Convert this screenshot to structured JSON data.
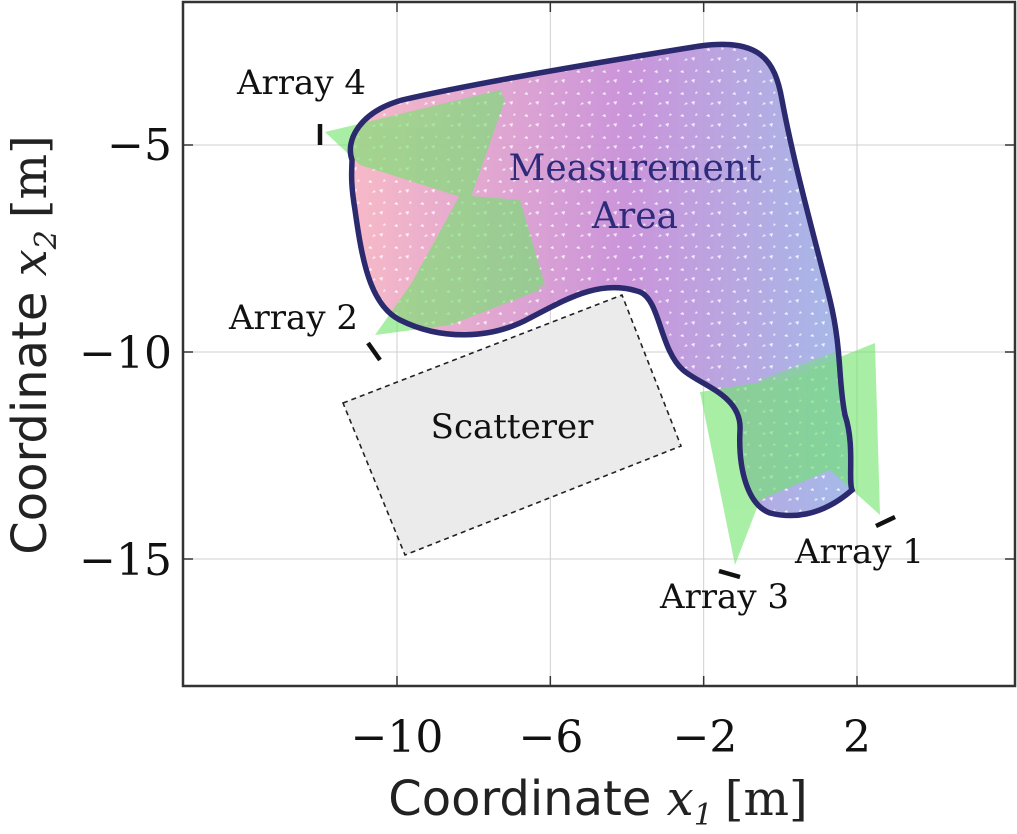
{
  "figure": {
    "x_axis": {
      "label_prefix": "Coordinate ",
      "label_symbol": "x",
      "label_subscript": "1",
      "label_unit": "[m]",
      "ticks": [
        -10,
        -6,
        -2,
        2
      ],
      "tick_labels": [
        "−10",
        "−6",
        "−2",
        "2"
      ],
      "range": [
        -15.5,
        6
      ]
    },
    "y_axis": {
      "label_prefix": "Coordinate ",
      "label_symbol": "x",
      "label_subscript": "2",
      "label_unit": "[m]",
      "ticks": [
        -5,
        -10,
        -15
      ],
      "tick_labels": [
        "−5",
        "−10",
        "−15"
      ],
      "range": [
        -18,
        -1.7
      ]
    },
    "measurement_area": {
      "label_line1": "Measurement",
      "label_line2": "Area",
      "outline_color": "#2b2a6e",
      "gradient_start": "#f7b6c4",
      "gradient_mid": "#c88fd8",
      "gradient_end": "#9fb7e8"
    },
    "scatterer": {
      "label": "Scatterer",
      "fill": "#ebebeb",
      "corners": [
        [
          -10.0,
          -11.3
        ],
        [
          -4.2,
          -8.6
        ],
        [
          -1.8,
          -13.5
        ],
        [
          -8.5,
          -15.8
        ]
      ]
    },
    "arrays": [
      {
        "id": "array-1",
        "label": "Array 1",
        "position": [
          2.7,
          -14.0
        ]
      },
      {
        "id": "array-2",
        "label": "Array 2",
        "position": [
          -10.8,
          -10.0
        ]
      },
      {
        "id": "array-3",
        "label": "Array 3",
        "position": [
          -1.0,
          -15.3
        ]
      },
      {
        "id": "array-4",
        "label": "Array 4",
        "position": [
          -12.6,
          -4.8
        ]
      }
    ],
    "beam_color": "#6fe66a",
    "grid": true
  }
}
